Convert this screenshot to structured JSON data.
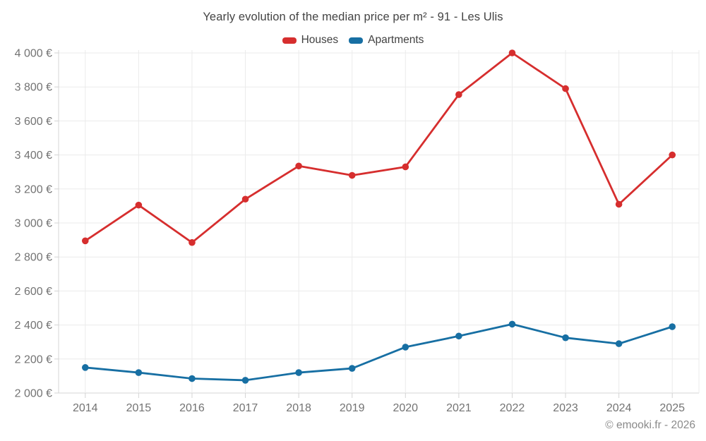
{
  "title": "Yearly evolution of the median price per m² - 91 - Les Ulis",
  "legend": {
    "items": [
      {
        "label": "Houses",
        "color": "#d62e2e"
      },
      {
        "label": "Apartments",
        "color": "#176fa3"
      }
    ]
  },
  "footer": "© emooki.fr - 2026",
  "colors": {
    "houses": "#d62e2e",
    "apartments": "#176fa3",
    "grid": "#ebebeb",
    "axis": "#d4d4d4",
    "axis_label": "#737373"
  },
  "chart_data": {
    "type": "line",
    "title": "Yearly evolution of the median price per m² - 91 - Les Ulis",
    "categories": [
      "2014",
      "2015",
      "2016",
      "2017",
      "2018",
      "2019",
      "2020",
      "2021",
      "2022",
      "2023",
      "2024",
      "2025"
    ],
    "series": [
      {
        "name": "Houses",
        "color": "#d62e2e",
        "values": [
          2895,
          3105,
          2885,
          3140,
          3335,
          3280,
          3330,
          3755,
          4000,
          3790,
          3110,
          3400
        ]
      },
      {
        "name": "Apartments",
        "color": "#176fa3",
        "values": [
          2150,
          2120,
          2085,
          2075,
          2120,
          2145,
          2270,
          2335,
          2405,
          2325,
          2290,
          2390
        ]
      }
    ],
    "xlabel": "",
    "ylabel": "",
    "ylim": [
      2000,
      4000
    ],
    "ytick_step": 200,
    "ytick_labels": [
      "2 000 €",
      "2 200 €",
      "2 400 €",
      "2 600 €",
      "2 800 €",
      "3 000 €",
      "3 200 €",
      "3 400 €",
      "3 600 €",
      "3 800 €",
      "4 000 €"
    ],
    "grid": true,
    "legend_position": "top",
    "markers": true
  }
}
